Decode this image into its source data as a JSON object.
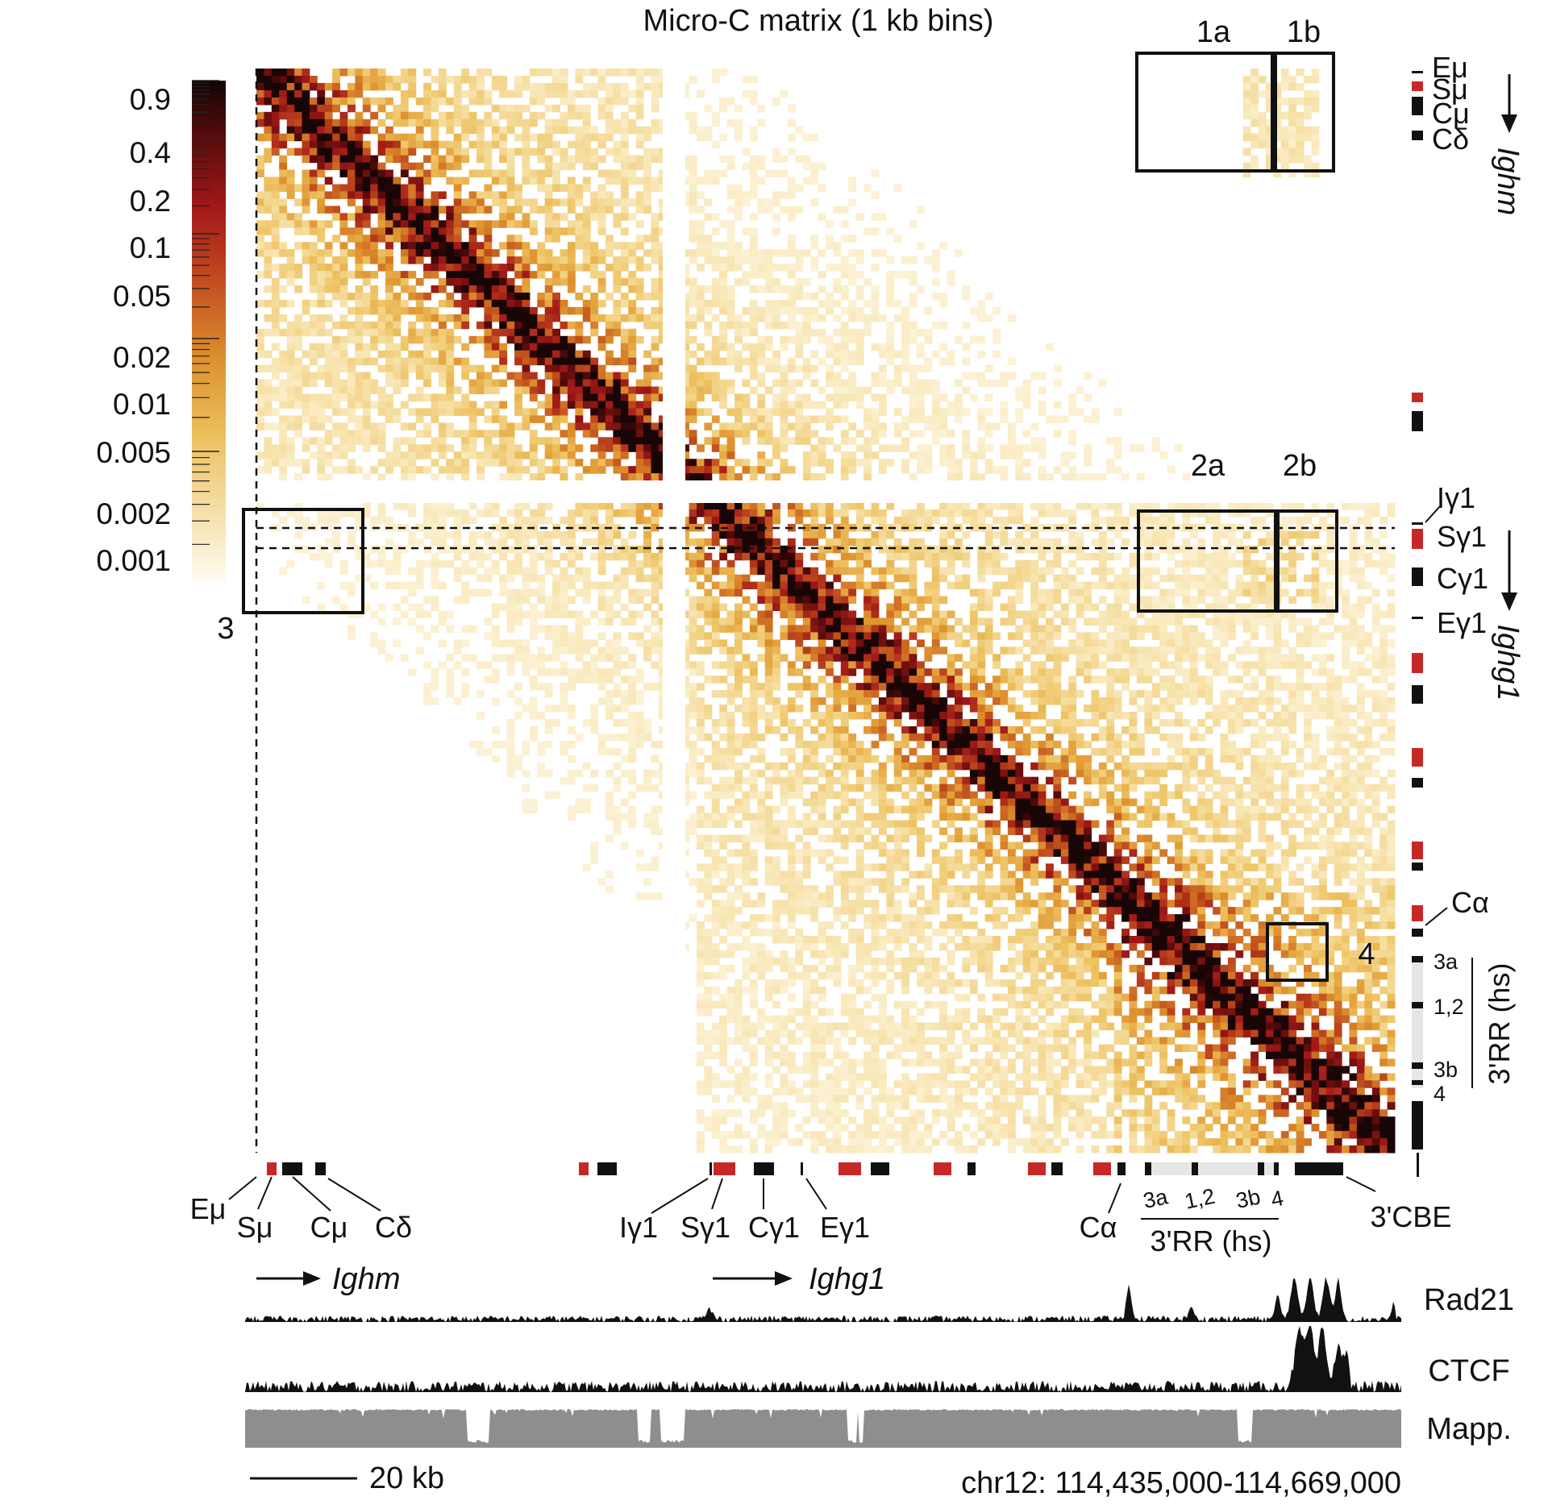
{
  "chart_data": {
    "type": "heatmap",
    "title": "Micro-C matrix (1 kb bins)",
    "colorbar": {
      "ticks": [
        "0.9",
        "0.4",
        "0.2",
        "0.1",
        "0.05",
        "0.02",
        "0.01",
        "0.005",
        "0.002",
        "0.001"
      ],
      "scale": "log",
      "colors": [
        "#fffdf6",
        "#f3d9a0",
        "#e8a838",
        "#cc6a1a",
        "#a81c1c",
        "#6b0f0f",
        "#1a0505"
      ]
    },
    "region": "chr12: 114,435,000-114,669,000",
    "scale_bar": "20 kb",
    "bins_kb": 1,
    "matrix_gap": "unmappable region between Ighm and Ighg1 blocks",
    "boxes": [
      "1a",
      "1b",
      "2a",
      "2b",
      "3",
      "4"
    ],
    "bottom_labels": [
      "Eμ",
      "Sμ",
      "Cμ",
      "Cδ",
      "Iγ1",
      "Sγ1",
      "Cγ1",
      "Eγ1",
      "Cα",
      "3a",
      "1,2",
      "3b",
      "4",
      "3'RR (hs)",
      "3'CBE"
    ],
    "right_labels": [
      "Eμ",
      "Sμ",
      "Cμ",
      "Cδ",
      "Ighm",
      "Iγ1",
      "Sγ1",
      "Cγ1",
      "Eγ1",
      "Ighg1",
      "Cα",
      "3a",
      "1,2",
      "3b",
      "4",
      "3'RR (hs)"
    ],
    "genes": [
      "Ighm",
      "Ighg1"
    ],
    "tracks": [
      "Rad21",
      "CTCF",
      "Mapp."
    ]
  },
  "labels": {
    "title": "Micro-C matrix (1 kb bins)",
    "cb_ticks": [
      "0.9",
      "0.4",
      "0.2",
      "0.1",
      "0.05",
      "0.02",
      "0.01",
      "0.005",
      "0.002",
      "0.001"
    ],
    "box_1a": "1a",
    "box_1b": "1b",
    "box_2a": "2a",
    "box_2b": "2b",
    "box_3": "3",
    "box_4": "4",
    "E_mu": "Eμ",
    "S_mu": "Sμ",
    "C_mu": "Cμ",
    "C_delta": "Cδ",
    "I_g1": "Iγ1",
    "S_g1": "Sγ1",
    "C_g1": "Cγ1",
    "E_g1": "Eγ1",
    "C_alpha": "Cα",
    "hs_3a": "3a",
    "hs_12": "1,2",
    "hs_3b": "3b",
    "hs_4": "4",
    "rr": "3'RR (hs)",
    "cbe": "3'CBE",
    "ighm": "Ighm",
    "ighg1": "Ighg1",
    "rad21": "Rad21",
    "ctcf": "CTCF",
    "mapp": "Mapp.",
    "scalebar": "20 kb",
    "region": "chr12: 114,435,000-114,669,000"
  }
}
